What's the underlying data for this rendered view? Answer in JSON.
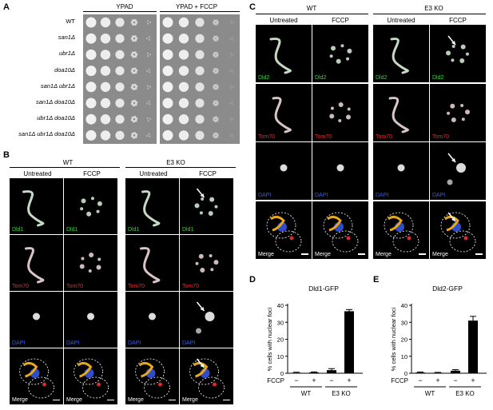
{
  "panel_labels": {
    "a": "A",
    "b": "B",
    "c": "C",
    "d": "D",
    "e": "E"
  },
  "panel_a": {
    "headers": [
      "YPAD",
      "YPAD + FCCP"
    ],
    "strains": [
      "WT",
      "san1Δ",
      "ubr1Δ",
      "doa10Δ",
      "san1Δ ubr1Δ",
      "san1Δ doa10Δ",
      "ubr1Δ doa10Δ",
      "san1Δ ubr1Δ doa10Δ"
    ]
  },
  "panel_b": {
    "groups": [
      "WT",
      "E3 KO"
    ],
    "columns": [
      "Untreated",
      "FCCP",
      "Untreated",
      "FCCP"
    ],
    "channels": [
      "Dld1",
      "Tom70",
      "DAPI",
      "Merge"
    ]
  },
  "panel_c": {
    "groups": [
      "WT",
      "E3 KO"
    ],
    "columns": [
      "Untreated",
      "FCCP",
      "Untreated",
      "FCCP"
    ],
    "channels": [
      "Dld2",
      "Tom70",
      "DAPI",
      "Merge"
    ]
  },
  "colors": {
    "green": "#3fcf3f",
    "red": "#e03131",
    "blue": "#3b5bdb",
    "plate": "#8b8b8b"
  },
  "chart_data": [
    {
      "type": "bar",
      "title": "Dld1-GFP",
      "ylabel": "% cells with nuclear foci",
      "ylim": [
        0,
        40
      ],
      "yticks": [
        0,
        10,
        20,
        30,
        40
      ],
      "categories": [
        "−",
        "+",
        "−",
        "+"
      ],
      "condition_label": "FCCP",
      "groups": [
        "WT",
        "E3 KO"
      ],
      "values": [
        0.3,
        0.5,
        1.8,
        36.5
      ],
      "errors": [
        0.3,
        0.3,
        0.9,
        1.0
      ]
    },
    {
      "type": "bar",
      "title": "Dld2-GFP",
      "ylabel": "% cells with nuclear foci",
      "ylim": [
        0,
        40
      ],
      "yticks": [
        0,
        10,
        20,
        30,
        40
      ],
      "categories": [
        "−",
        "+",
        "−",
        "+"
      ],
      "condition_label": "FCCP",
      "groups": [
        "WT",
        "E3 KO"
      ],
      "values": [
        0.4,
        0.3,
        1.5,
        31.0
      ],
      "errors": [
        0.3,
        0.2,
        0.6,
        2.5
      ]
    }
  ]
}
